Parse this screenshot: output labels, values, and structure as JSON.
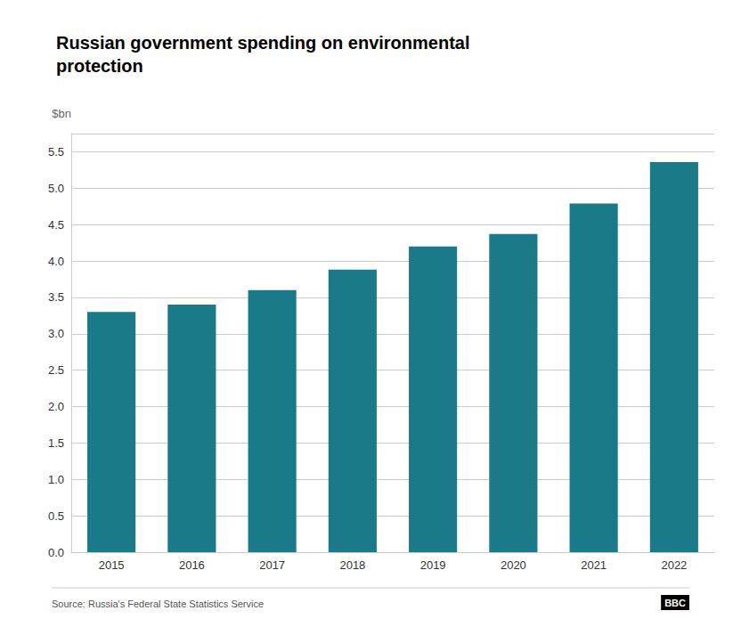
{
  "chart_data": {
    "type": "bar",
    "title": "Russian government spending on environmental\nprotection",
    "ylabel": "$bn",
    "source": "Source: Russia's Federal State Statistics Service",
    "annotations": [
      "BBC"
    ],
    "categories": [
      "2015",
      "2016",
      "2017",
      "2018",
      "2019",
      "2020",
      "2021",
      "2022"
    ],
    "values": [
      3.3,
      3.4,
      3.6,
      3.88,
      4.2,
      4.37,
      4.79,
      5.36
    ],
    "color": "#1a7a8a",
    "ylim": [
      0,
      5.75
    ],
    "yticks": [
      {
        "value": 0,
        "label": "0.0"
      },
      0.5,
      {
        "value": 1,
        "label": "1.0"
      },
      1.5,
      {
        "value": 2,
        "label": "2.0"
      },
      2.5,
      {
        "value": 3,
        "label": "3.0"
      },
      3.5,
      {
        "value": 4,
        "label": "4.0"
      },
      4.5,
      {
        "value": 5,
        "label": "5.0"
      },
      5.5
    ],
    "grid": true
  }
}
